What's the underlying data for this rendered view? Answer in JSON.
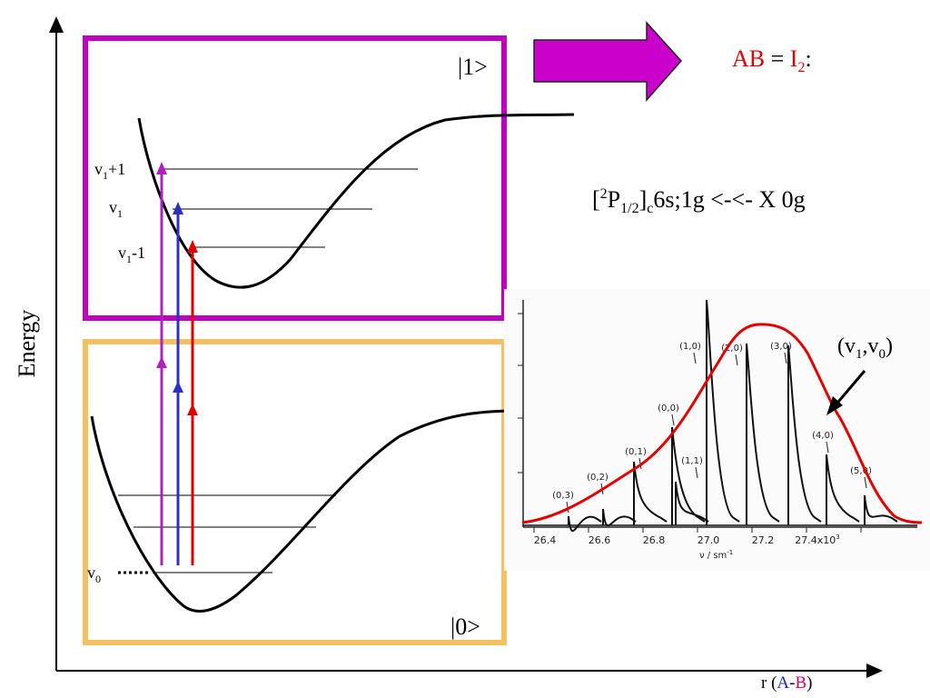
{
  "y_axis_label": "Energy",
  "x_axis_label": {
    "prefix": "r (",
    "a": "A",
    "dash": "-",
    "b": "B",
    "suffix": ")"
  },
  "upper_state_label": "|1>",
  "lower_state_label": "|0>",
  "molecule": {
    "ab": "AB",
    "eq": " = ",
    "i": "I",
    "sub": "2",
    "colon": ":"
  },
  "transition": {
    "open": "[",
    "sup": "2",
    "p": "P",
    "sub1": "1/2",
    "close": "]",
    "sub2": "c",
    "rest": "6s;1g <-<- X 0g"
  },
  "levels": {
    "v1p1": {
      "v": "v",
      "sub": "1",
      "suffix": "+1"
    },
    "v1": {
      "v": "v",
      "sub": "1",
      "suffix": ""
    },
    "v1m1": {
      "v": "v",
      "sub": "1",
      "suffix": "-1"
    },
    "v0": {
      "v": "v",
      "sub": "0"
    }
  },
  "envelope_label": {
    "open": "(v",
    "s1": "1",
    "mid": ",v",
    "s0": "0",
    "close": ")"
  },
  "spectrum": {
    "tick_labels": [
      "26.4",
      "26.6",
      "26.8",
      "27.0",
      "27.2",
      "27.4x10"
    ],
    "tick_sup": "3",
    "axis_unit": {
      "text": "ν / sm",
      "sup": "-1"
    },
    "band_labels": [
      "(0,3)",
      "(0,2)",
      "(0,1)",
      "(0,0)",
      "(1,1)",
      "(1,0)",
      "(2,0)",
      "(3,0)",
      "(4,0)",
      "(5,0)"
    ]
  },
  "colors": {
    "upper_box": "#c000c0",
    "lower_box": "#f5c060",
    "arrow_magenta": "#b020c0",
    "arrow_blue": "#3030c0",
    "arrow_red": "#e00000",
    "envelope": "#e00000",
    "big_arrow": "#cc00cc"
  }
}
